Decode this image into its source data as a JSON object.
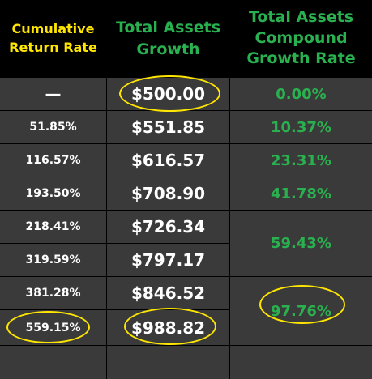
{
  "colors": {
    "header_bg": "#000000",
    "cell_bg": "#3a3a3a",
    "grid_line": "#000000",
    "yellow": "#ffe600",
    "green": "#2ab14f",
    "white": "#ffffff",
    "highlight_oval": "#ffe600"
  },
  "headers": {
    "cumulative": [
      "Cumulative",
      "Return Rate"
    ],
    "total_assets": [
      "Total Assets",
      "Growth"
    ],
    "compound": [
      "Total Assets",
      "Compound",
      "Growth Rate"
    ]
  },
  "rows": [
    {
      "cumulative": "—",
      "total": "$500.00"
    },
    {
      "cumulative": "51.85%",
      "total": "$551.85"
    },
    {
      "cumulative": "116.57%",
      "total": "$616.57"
    },
    {
      "cumulative": "193.50%",
      "total": "$708.90"
    },
    {
      "cumulative": "218.41%",
      "total": "$726.34"
    },
    {
      "cumulative": "319.59%",
      "total": "$797.17"
    },
    {
      "cumulative": "381.28%",
      "total": "$846.52"
    },
    {
      "cumulative": "559.15%",
      "total": "$988.82"
    }
  ],
  "compound_rates": [
    "0.00%",
    "10.37%",
    "23.31%",
    "41.78%",
    "59.43%",
    "97.76%"
  ],
  "highlights": [
    "$500.00",
    "$988.82",
    "559.15%",
    "97.76%"
  ]
}
